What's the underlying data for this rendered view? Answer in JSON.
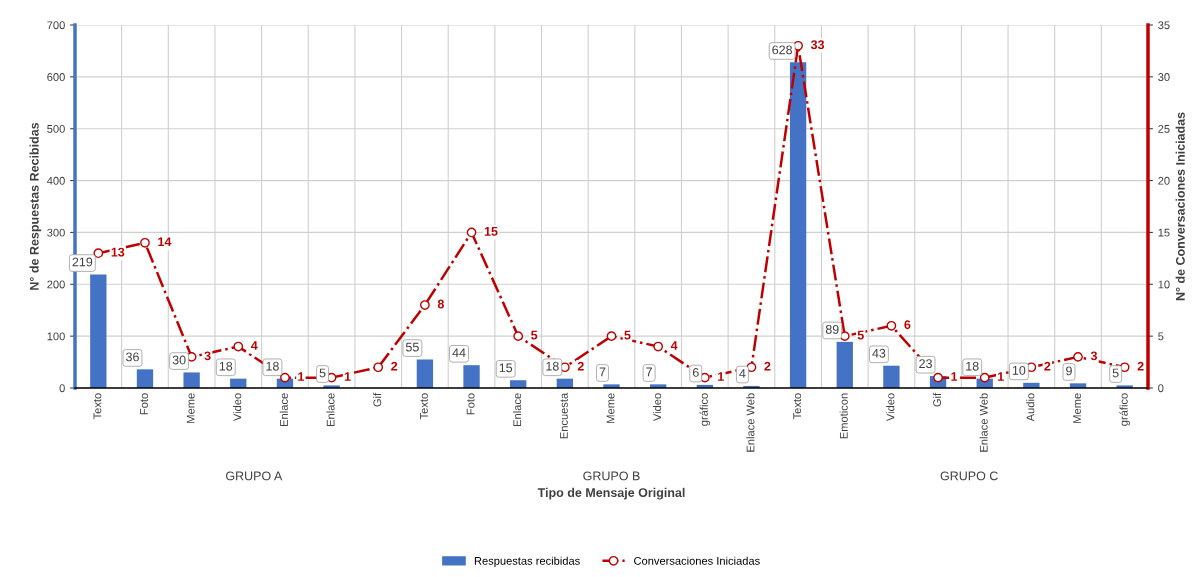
{
  "chart_data": {
    "type": "bar",
    "xlabel": "Tipo de Mensaje Original",
    "ylabel": "N° de Respuestas Recibidas",
    "y2label": "N° de Conversaciones Iniciadas",
    "categories": [
      "Texto",
      "Foto",
      "Meme",
      "Video",
      "Enlace",
      "Enlace",
      "Gif",
      "Texto",
      "Foto",
      "Enlace",
      "Encuesta",
      "Meme",
      "Video",
      "gráfico",
      "Enlace Web",
      "Texto",
      "Emoticon",
      "Video",
      "Gif",
      "Enlace Web",
      "Audio",
      "Meme",
      "gráfico"
    ],
    "annotations": [
      "GRUPO A",
      "GRUPO B",
      "GRUPO C"
    ],
    "series": [
      {
        "name": "Respuestas recibidas",
        "color": "#4472c4",
        "values": [
          219,
          36,
          30,
          18,
          18,
          5,
          null,
          55,
          44,
          15,
          18,
          7,
          7,
          6,
          4,
          628,
          89,
          43,
          23,
          18,
          10,
          9,
          5
        ],
        "value_labels": [
          "219",
          "36",
          "30",
          "18",
          "18",
          "5",
          null,
          "55",
          "44",
          "15",
          "18",
          "7",
          "7",
          "6",
          "4",
          "628",
          "89",
          "43",
          "23",
          "18",
          "10",
          "9",
          "5"
        ]
      },
      {
        "name": "Conversaciones Iniciadas",
        "type": "line",
        "axis": "y2",
        "color": "#c00000",
        "marker": "circle",
        "line_style": "dashed",
        "data_labels": true,
        "values": [
          13,
          14,
          3,
          4,
          1,
          1,
          2,
          8,
          15,
          5,
          2,
          5,
          4,
          1,
          2,
          33,
          5,
          6,
          1,
          1,
          2,
          3,
          2
        ]
      }
    ],
    "ylim": [
      0,
      700
    ],
    "yticks": [
      0,
      100,
      200,
      300,
      400,
      500,
      600,
      700
    ],
    "y2lim": [
      0,
      35
    ],
    "y2ticks": [
      0,
      5,
      10,
      15,
      20,
      25,
      30,
      35
    ],
    "grid": true,
    "legend": "bottom"
  }
}
